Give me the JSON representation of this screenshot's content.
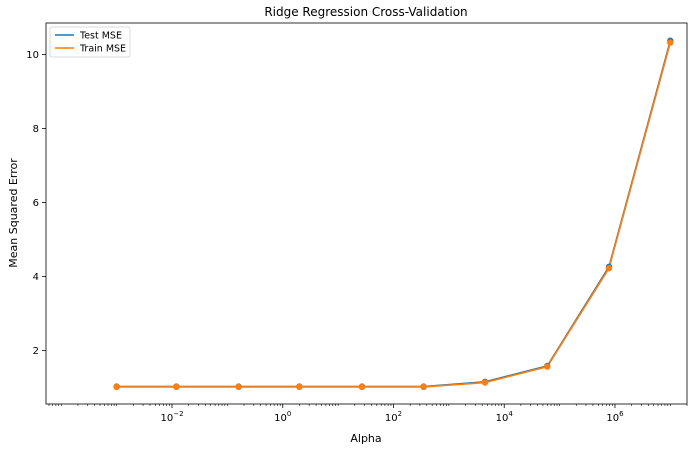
{
  "chart_data": {
    "type": "line",
    "title": "Ridge Regression Cross-Validation",
    "xlabel": "Alpha",
    "ylabel": "Mean Squared Error",
    "xscale": "log",
    "xlim": [
      5.3e-05,
      20000000
    ],
    "ylim": [
      0.55,
      10.85
    ],
    "grid": false,
    "legend_position": "top-left",
    "x": [
      0.001,
      0.012,
      0.16,
      2.0,
      27,
      350,
      4500,
      60000,
      780000,
      10000000
    ],
    "series": [
      {
        "name": "Test MSE",
        "color": "#1f77b4",
        "marker": "circle",
        "values": [
          1.02,
          1.02,
          1.02,
          1.02,
          1.02,
          1.02,
          1.15,
          1.58,
          4.26,
          10.37
        ]
      },
      {
        "name": "Train MSE",
        "color": "#ff7f0e",
        "marker": "circle",
        "values": [
          1.01,
          1.01,
          1.01,
          1.01,
          1.01,
          1.01,
          1.13,
          1.56,
          4.22,
          10.32
        ]
      }
    ],
    "x_ticks": [
      {
        "value": 0.01,
        "base": "10",
        "exp": "−2"
      },
      {
        "value": 1,
        "base": "10",
        "exp": "0"
      },
      {
        "value": 100,
        "base": "10",
        "exp": "2"
      },
      {
        "value": 10000,
        "base": "10",
        "exp": "4"
      },
      {
        "value": 1000000,
        "base": "10",
        "exp": "6"
      }
    ],
    "y_ticks": [
      {
        "value": 2,
        "label": "2"
      },
      {
        "value": 4,
        "label": "4"
      },
      {
        "value": 6,
        "label": "6"
      },
      {
        "value": 8,
        "label": "8"
      },
      {
        "value": 10,
        "label": "10"
      }
    ]
  }
}
